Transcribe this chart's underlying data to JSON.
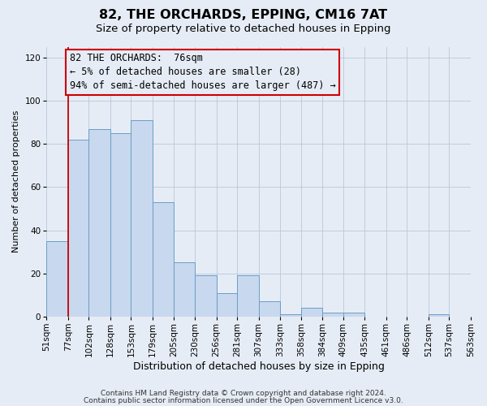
{
  "title": "82, THE ORCHARDS, EPPING, CM16 7AT",
  "subtitle": "Size of property relative to detached houses in Epping",
  "xlabel": "Distribution of detached houses by size in Epping",
  "ylabel": "Number of detached properties",
  "bar_color": "#c8d8ee",
  "bar_edge_color": "#6b9ec8",
  "background_color": "#e6ecf5",
  "grid_color": "#b8c8dc",
  "annotation_line_color": "#cc0000",
  "annotation_text": "82 THE ORCHARDS:  76sqm\n← 5% of detached houses are smaller (28)\n94% of semi-detached houses are larger (487) →",
  "bins": [
    51,
    77,
    102,
    128,
    153,
    179,
    205,
    230,
    256,
    281,
    307,
    333,
    358,
    384,
    409,
    435,
    461,
    486,
    512,
    537,
    563
  ],
  "counts": [
    35,
    82,
    87,
    85,
    91,
    53,
    25,
    19,
    11,
    19,
    7,
    1,
    4,
    2,
    2,
    0,
    0,
    0,
    1,
    0,
    1
  ],
  "ylim": [
    0,
    125
  ],
  "yticks": [
    0,
    20,
    40,
    60,
    80,
    100,
    120
  ],
  "footer1": "Contains HM Land Registry data © Crown copyright and database right 2024.",
  "footer2": "Contains public sector information licensed under the Open Government Licence v3.0.",
  "title_fontsize": 11.5,
  "subtitle_fontsize": 9.5,
  "xlabel_fontsize": 9,
  "ylabel_fontsize": 8,
  "tick_fontsize": 7.5,
  "footer_fontsize": 6.5,
  "annotation_fontsize": 8.5
}
